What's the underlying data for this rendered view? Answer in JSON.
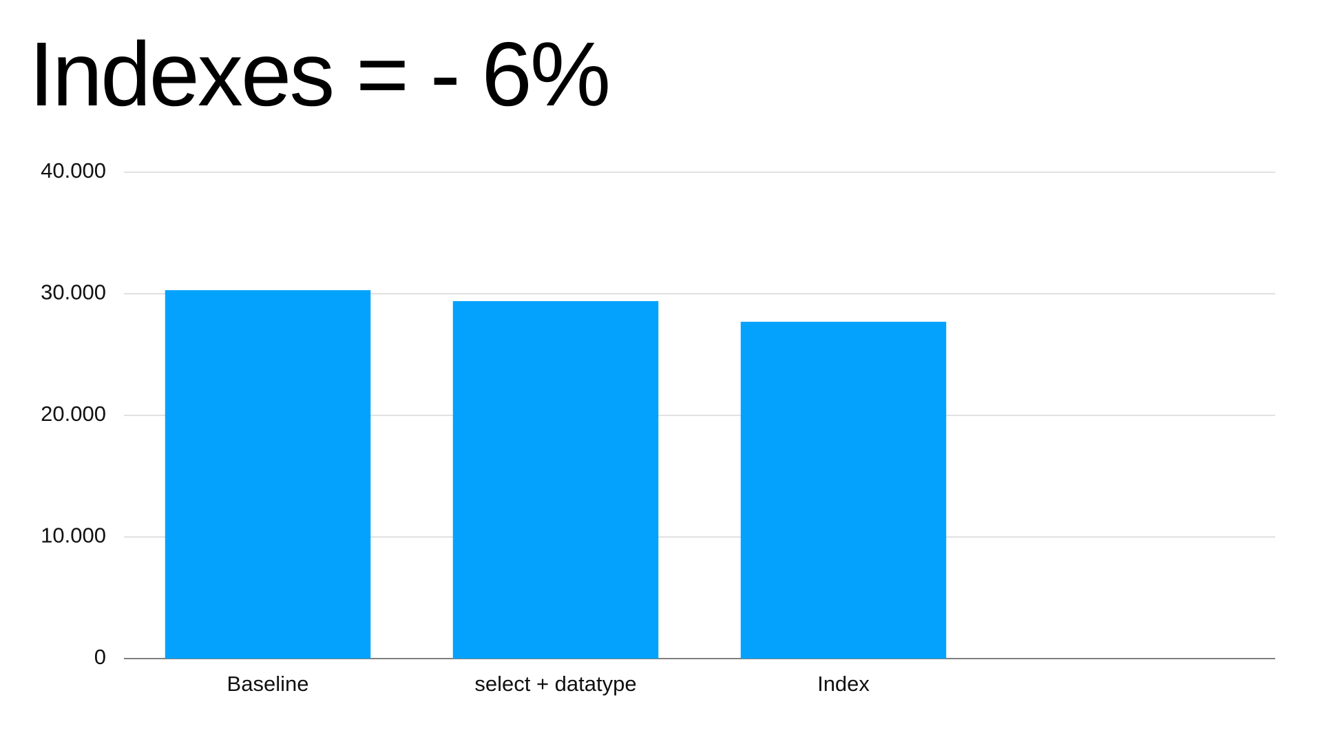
{
  "chart_data": {
    "type": "bar",
    "title": "Indexes = - 6%",
    "categories": [
      "Baseline",
      "select + datatype",
      "Index",
      null
    ],
    "values": [
      30300,
      29400,
      27700,
      null
    ],
    "color": "#05a2fd",
    "ylim": [
      0,
      40000
    ],
    "yticks": [
      0,
      {
        "value": 10000,
        "label": "10.000"
      },
      {
        "value": 20000,
        "label": "20.000"
      },
      {
        "value": 30000,
        "label": "30.000"
      },
      {
        "value": 40000,
        "label": "40.000"
      }
    ],
    "grid": true
  }
}
